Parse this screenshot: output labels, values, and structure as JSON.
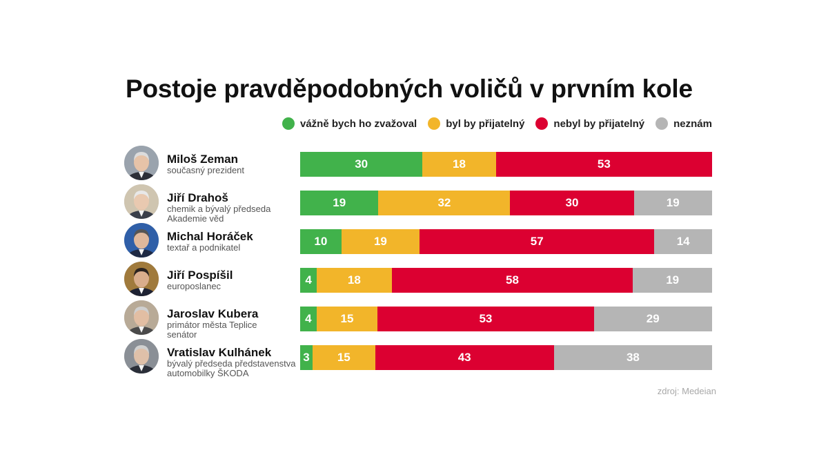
{
  "title": "Postoje pravděpodobných voličů v prvním kole",
  "source": "zdroj: Medeian",
  "legend": [
    {
      "label": "vážně bych ho zvažoval",
      "color": "#41b24b"
    },
    {
      "label": "byl by přijatelný",
      "color": "#f2b52a"
    },
    {
      "label": "nebyl by přijatelný",
      "color": "#dc0031"
    },
    {
      "label": "neznám",
      "color": "#b5b5b5"
    }
  ],
  "candidates": [
    {
      "name": "Miloš Zeman",
      "description": "současný prezident",
      "avatar": "portrait-zeman"
    },
    {
      "name": "Jiří Drahoš",
      "description": "chemik a bývalý předseda\nAkademie věd",
      "avatar": "portrait-drahos"
    },
    {
      "name": "Michal Horáček",
      "description": "textař a podnikatel",
      "avatar": "portrait-horacek"
    },
    {
      "name": "Jiří Pospíšil",
      "description": "europoslanec",
      "avatar": "portrait-pospisil"
    },
    {
      "name": "Jaroslav Kubera",
      "description": "primátor města Teplice\nsenátor",
      "avatar": "portrait-kubera"
    },
    {
      "name": "Vratislav Kulhánek",
      "description": "bývalý předseda představenstva\nautomobilky ŠKODA",
      "avatar": "portrait-kulhanek"
    }
  ],
  "chart_data": {
    "type": "bar",
    "orientation": "horizontal",
    "stacked": true,
    "title": "Postoje pravděpodobných voličů v prvním kole",
    "legend_position": "top-right",
    "categories": [
      "Miloš Zeman",
      "Jiří Drahoš",
      "Michal Horáček",
      "Jiří Pospíšil",
      "Jaroslav Kubera",
      "Vratislav Kulhánek"
    ],
    "series": [
      {
        "name": "vážně bych ho zvažoval",
        "color": "#41b24b",
        "values": [
          30,
          19,
          10,
          4,
          4,
          3
        ]
      },
      {
        "name": "byl by přijatelný",
        "color": "#f2b52a",
        "values": [
          18,
          32,
          19,
          18,
          15,
          15
        ]
      },
      {
        "name": "nebyl by přijatelný",
        "color": "#dc0031",
        "values": [
          53,
          30,
          57,
          58,
          53,
          43
        ]
      },
      {
        "name": "neznám",
        "color": "#b5b5b5",
        "values": [
          0,
          19,
          14,
          19,
          29,
          38
        ]
      }
    ]
  }
}
